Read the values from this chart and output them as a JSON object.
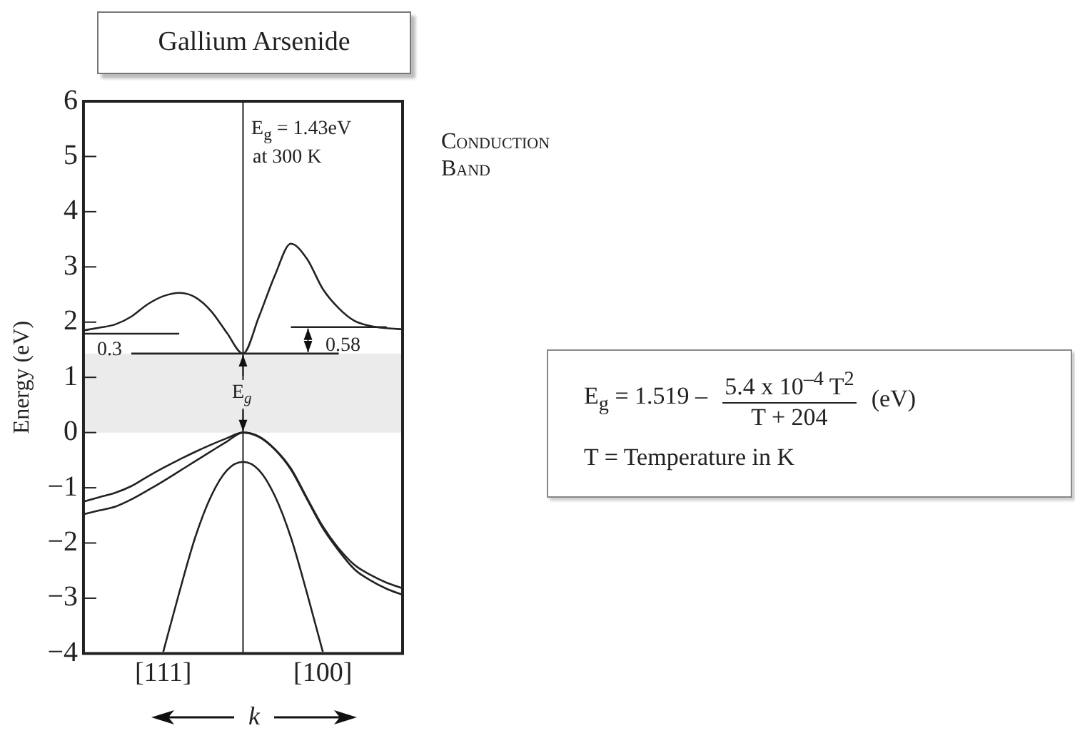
{
  "chart_data": {
    "type": "line",
    "title": "Gallium Arsenide",
    "xlabel": "k",
    "ylabel": "Energy (eV)",
    "categories": [
      null,
      null,
      null,
      null,
      null,
      "[111]",
      null,
      null,
      null,
      null,
      null,
      null,
      null,
      null,
      null,
      "[100]",
      null,
      null,
      null,
      null,
      null
    ],
    "ylim": [
      -4,
      6
    ],
    "yticks": [
      -4,
      -3,
      -2,
      -1,
      0,
      1,
      2,
      3,
      4,
      5,
      6
    ],
    "grid": false,
    "legend": false,
    "marker": "none",
    "line_style": "solid",
    "series": [
      {
        "color": "#222222",
        "values": [
          1.85,
          1.9,
          1.96,
          2.1,
          2.32,
          2.47,
          2.53,
          2.45,
          2.2,
          1.8,
          1.43,
          2.1,
          2.85,
          3.42,
          3.15,
          2.6,
          2.25,
          2.02,
          1.93,
          1.89,
          1.87
        ]
      },
      {
        "color": "#222222",
        "values": [
          -1.25,
          -1.17,
          -1.09,
          -0.97,
          -0.8,
          -0.64,
          -0.49,
          -0.35,
          -0.22,
          -0.1,
          0,
          -0.07,
          -0.3,
          -0.65,
          -1.18,
          -1.7,
          -2.1,
          -2.4,
          -2.58,
          -2.72,
          -2.82
        ]
      },
      {
        "color": "#222222",
        "values": [
          -1.48,
          -1.41,
          -1.34,
          -1.21,
          -1.05,
          -0.88,
          -0.7,
          -0.52,
          -0.34,
          -0.16,
          0,
          -0.08,
          -0.31,
          -0.67,
          -1.2,
          -1.73,
          -2.14,
          -2.48,
          -2.68,
          -2.83,
          -2.94
        ]
      },
      {
        "color": "#222222",
        "values": [
          null,
          null,
          null,
          null,
          null,
          -3.97,
          -2.9,
          -1.9,
          -1.15,
          -0.68,
          -0.53,
          -0.68,
          -1.15,
          -1.9,
          -2.9,
          -3.97,
          null,
          null,
          null,
          null,
          null
        ]
      },
      {
        "color": "#222222",
        "values": [
          1.79,
          1.79,
          1.79,
          1.79,
          1.79,
          1.79,
          1.79,
          null,
          null,
          null,
          null,
          null,
          null,
          null,
          null,
          null,
          null,
          null,
          null,
          null,
          null
        ]
      },
      {
        "color": "#222222",
        "values": [
          null,
          null,
          null,
          null,
          null,
          null,
          null,
          null,
          null,
          null,
          null,
          null,
          null,
          1.91,
          1.91,
          1.91,
          1.91,
          1.91,
          1.91,
          1.91,
          null
        ]
      },
      {
        "color": "#222222",
        "values": [
          null,
          null,
          null,
          1.43,
          1.43,
          1.43,
          1.43,
          1.43,
          1.43,
          1.43,
          1.43,
          1.43,
          1.43,
          1.43,
          1.43,
          1.43,
          1.43,
          null,
          null,
          null,
          null
        ]
      }
    ],
    "bands": [
      {
        "axis": "y",
        "from": 0,
        "to": 1.43,
        "color": "#ebebeb"
      }
    ],
    "annotations": [
      "0.3",
      "0.58",
      {
        "text": "E$_{g}$",
        "y": 0.72
      },
      "E$_{g}$ = 1.43eV",
      "at 300 K",
      "Conduction Band",
      "E$_{g}$ = 1.519 –",
      "5.4 x 10$^{–4}$ T$^{2}$",
      "T + 204",
      "(eV)",
      "T = Temperature in K"
    ]
  }
}
